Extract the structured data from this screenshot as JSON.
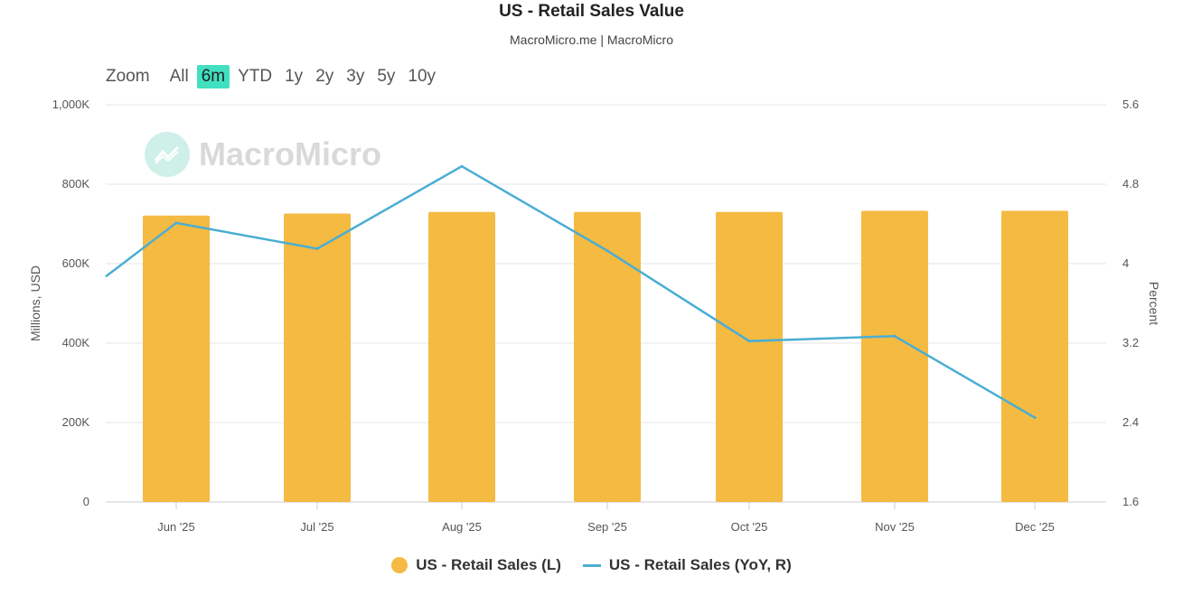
{
  "title": "US - Retail Sales Value",
  "subtitle": "MacroMicro.me | MacroMicro",
  "watermark": "MacroMicro",
  "zoom": {
    "label": "Zoom",
    "options": [
      "All",
      "6m",
      "YTD",
      "1y",
      "2y",
      "3y",
      "5y",
      "10y"
    ],
    "active": "6m"
  },
  "colors": {
    "bar": "#F4BA42",
    "line": "#4AAED3",
    "grid": "#e6e6e6"
  },
  "chart_data": {
    "type": "bar",
    "title": "US - Retail Sales Value",
    "categories": [
      "Jun '25",
      "Jul '25",
      "Aug '25",
      "Sep '25",
      "Oct '25",
      "Nov '25",
      "Dec '25"
    ],
    "series": [
      {
        "name": "US - Retail Sales (L)",
        "type": "bar",
        "axis": "left",
        "values": [
          721000,
          726000,
          730000,
          730000,
          730000,
          733000,
          733000
        ]
      },
      {
        "name": "US - Retail Sales (YoY, R)",
        "type": "line",
        "axis": "right",
        "line_start_value": 3.87,
        "values": [
          4.41,
          4.15,
          4.98,
          4.13,
          3.22,
          3.27,
          2.45
        ]
      }
    ],
    "left_axis": {
      "label": "Millions, USD",
      "ylim": [
        0,
        1000000
      ],
      "ticks": [
        "0",
        "200K",
        "400K",
        "600K",
        "800K",
        "1,000K"
      ]
    },
    "right_axis": {
      "label": "Percent",
      "ylim": [
        1.6,
        5.6
      ],
      "ticks": [
        "1.6",
        "2.4",
        "3.2",
        "4",
        "4.8",
        "5.6"
      ]
    },
    "legend_position": "bottom-center",
    "grid": true
  }
}
